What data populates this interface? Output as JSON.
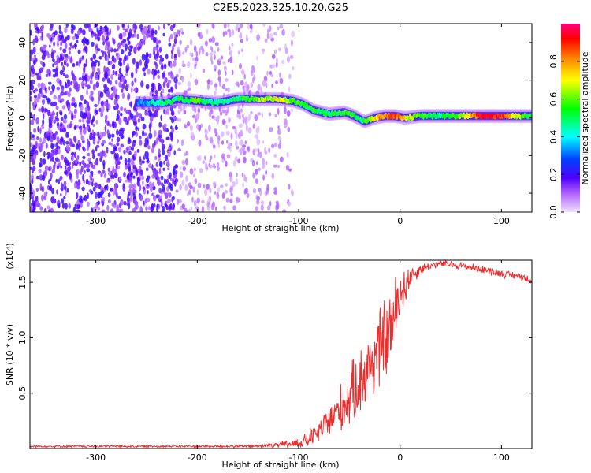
{
  "title": "C2E5.2023.325.10.20.G25",
  "chart_data": [
    {
      "type": "heatmap",
      "xlabel": "Height of straight line (km)",
      "ylabel": "Frequency (Hz)",
      "xlim": [
        -365,
        130
      ],
      "ylim": [
        -50,
        50
      ],
      "xticks": [
        -300,
        -200,
        -100,
        0,
        100
      ],
      "yticks": [
        -40,
        -20,
        0,
        20,
        40
      ],
      "colorbar": {
        "label": "Normalized spectral amplitude",
        "range": [
          0.0,
          1.0
        ],
        "ticks": [
          0.0,
          0.2,
          0.4,
          0.6,
          0.8
        ],
        "colormap": [
          "#ffffff",
          "#e6ccff",
          "#8000ff",
          "#0000ff",
          "#00ffff",
          "#00ff00",
          "#ffff00",
          "#ff8000",
          "#ff0000",
          "#ff0080"
        ]
      },
      "ridge": {
        "x": [
          -255,
          -245,
          -230,
          -220,
          -200,
          -180,
          -160,
          -140,
          -120,
          -105,
          -95,
          -85,
          -70,
          -55,
          -45,
          -35,
          -25,
          -15,
          -5,
          5,
          20,
          40,
          60,
          80,
          100,
          120,
          130
        ],
        "y": [
          8,
          8,
          8,
          10,
          9,
          8,
          10,
          10,
          10,
          9,
          7,
          4,
          2,
          3,
          1,
          -2,
          0,
          1,
          1,
          0,
          1,
          1,
          1,
          1,
          1,
          1,
          1
        ],
        "amplitude": [
          0.3,
          0.4,
          0.5,
          0.5,
          0.55,
          0.45,
          0.5,
          0.6,
          0.7,
          0.6,
          0.5,
          0.55,
          0.5,
          0.55,
          0.55,
          0.5,
          0.75,
          0.85,
          0.9,
          0.7,
          0.55,
          0.5,
          0.6,
          0.95,
          0.9,
          0.6,
          0.5
        ]
      },
      "noise_region_x": [
        -365,
        -105
      ]
    },
    {
      "type": "line",
      "xlabel": "Height of straight line (km)",
      "ylabel": "SNR (10 * v/v)",
      "y_multiplier": "(x10⁴)",
      "xlim": [
        -365,
        130
      ],
      "ylim": [
        0.0,
        1.7
      ],
      "xticks": [
        -300,
        -200,
        -100,
        0,
        100
      ],
      "yticks": [
        0.5,
        1.0,
        1.5
      ],
      "series": [
        {
          "color": "#e83030",
          "x": [
            -365,
            -300,
            -250,
            -200,
            -150,
            -120,
            -100,
            -90,
            -80,
            -70,
            -60,
            -50,
            -40,
            -30,
            -20,
            -10,
            -5,
            0,
            10,
            20,
            30,
            40,
            60,
            80,
            100,
            120,
            130
          ],
          "y": [
            0.02,
            0.02,
            0.02,
            0.02,
            0.02,
            0.03,
            0.05,
            0.08,
            0.15,
            0.25,
            0.35,
            0.45,
            0.6,
            0.75,
            0.9,
            1.05,
            1.2,
            1.4,
            1.55,
            1.62,
            1.65,
            1.67,
            1.65,
            1.62,
            1.58,
            1.55,
            1.52
          ],
          "noise": [
            0.005,
            0.006,
            0.006,
            0.006,
            0.008,
            0.015,
            0.03,
            0.04,
            0.06,
            0.09,
            0.12,
            0.15,
            0.18,
            0.2,
            0.22,
            0.22,
            0.2,
            0.15,
            0.06,
            0.03,
            0.02,
            0.02,
            0.02,
            0.02,
            0.02,
            0.02,
            0.02
          ]
        }
      ]
    }
  ]
}
